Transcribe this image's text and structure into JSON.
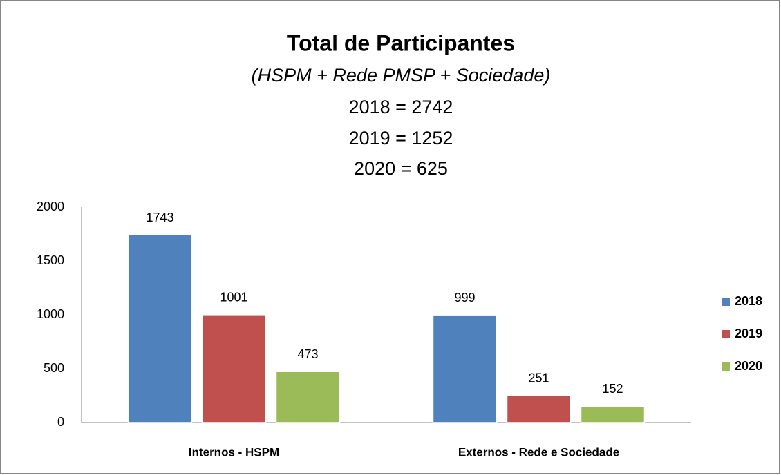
{
  "chart_data": {
    "type": "bar",
    "title": "Total de Participantes",
    "subtitle": "(HSPM + Rede PMSP + Sociedade)",
    "annotations": [
      "2018 = 2742",
      "2019 = 1252",
      "2020 = 625"
    ],
    "categories": [
      "Internos - HSPM",
      "Externos - Rede e Sociedade"
    ],
    "series": [
      {
        "name": "2018",
        "color": "#4f81bd",
        "values": [
          1743,
          999
        ]
      },
      {
        "name": "2019",
        "color": "#c0504d",
        "values": [
          1001,
          251
        ]
      },
      {
        "name": "2020",
        "color": "#9bbb59",
        "values": [
          473,
          152
        ]
      }
    ],
    "ylim": [
      0,
      2000
    ],
    "yticks": [
      0,
      500,
      1000,
      1500,
      2000
    ],
    "legend": "right"
  }
}
